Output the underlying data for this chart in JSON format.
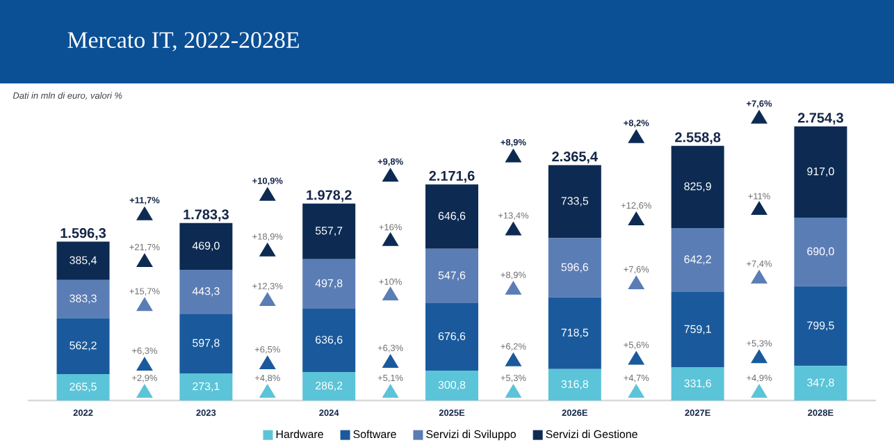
{
  "chart_data": {
    "type": "bar",
    "stacked": true,
    "title": "Mercato IT, 2022-2028E",
    "subtitle": "Dati in mln di euro, valori %",
    "categories": [
      "2022",
      "2023",
      "2024",
      "2025E",
      "2026E",
      "2027E",
      "2028E"
    ],
    "series": [
      {
        "name": "Hardware",
        "color": "#5bc4d8",
        "values": [
          265.5,
          273.1,
          286.2,
          300.8,
          316.8,
          331.6,
          347.8
        ],
        "value_labels": [
          "265,5",
          "273,1",
          "286,2",
          "300,8",
          "316,8",
          "331,6",
          "347,8"
        ]
      },
      {
        "name": "Software",
        "color": "#1a5a9c",
        "values": [
          562.2,
          597.8,
          636.6,
          676.6,
          718.5,
          759.1,
          799.5
        ],
        "value_labels": [
          "562,2",
          "597,8",
          "636,6",
          "676,6",
          "718,5",
          "759,1",
          "799,5"
        ]
      },
      {
        "name": "Servizi di Sviluppo",
        "color": "#5b7db5",
        "values": [
          383.3,
          443.3,
          497.8,
          547.6,
          596.6,
          642.2,
          690.0
        ],
        "value_labels": [
          "383,3",
          "443,3",
          "497,8",
          "547,6",
          "596,6",
          "642,2",
          "690,0"
        ]
      },
      {
        "name": "Servizi di Gestione",
        "color": "#0d2b52",
        "values": [
          385.4,
          469.0,
          557.7,
          646.6,
          733.5,
          825.9,
          917.0
        ],
        "value_labels": [
          "385,4",
          "469,0",
          "557,7",
          "646,6",
          "733,5",
          "825,9",
          "917,0"
        ]
      }
    ],
    "totals": [
      "1.596,3",
      "1.783,3",
      "1.978,2",
      "2.171,6",
      "2.365,4",
      "2.558,8",
      "2.754,3"
    ],
    "annotations": [
      "+11,7%",
      "+21,7%",
      "+15,7%",
      "+6,3%",
      "+2,9%",
      "+10,9%",
      "+18,9%",
      "+12,3%",
      "+6,5%",
      "+4,8%",
      "+9,8%",
      "+16%",
      "+10%",
      "+6,3%",
      "+5,1%",
      "+8,9%",
      "+13,4%",
      "+8,9%",
      "+6,2%",
      "+5,3%",
      "+8,2%",
      "+12,6%",
      "+7,6%",
      "+5,6%",
      "+4,7%",
      "+7,6%",
      "+11%",
      "+7,4%",
      "+5,3%",
      "+4,9%"
    ],
    "legend": "bottom"
  }
}
